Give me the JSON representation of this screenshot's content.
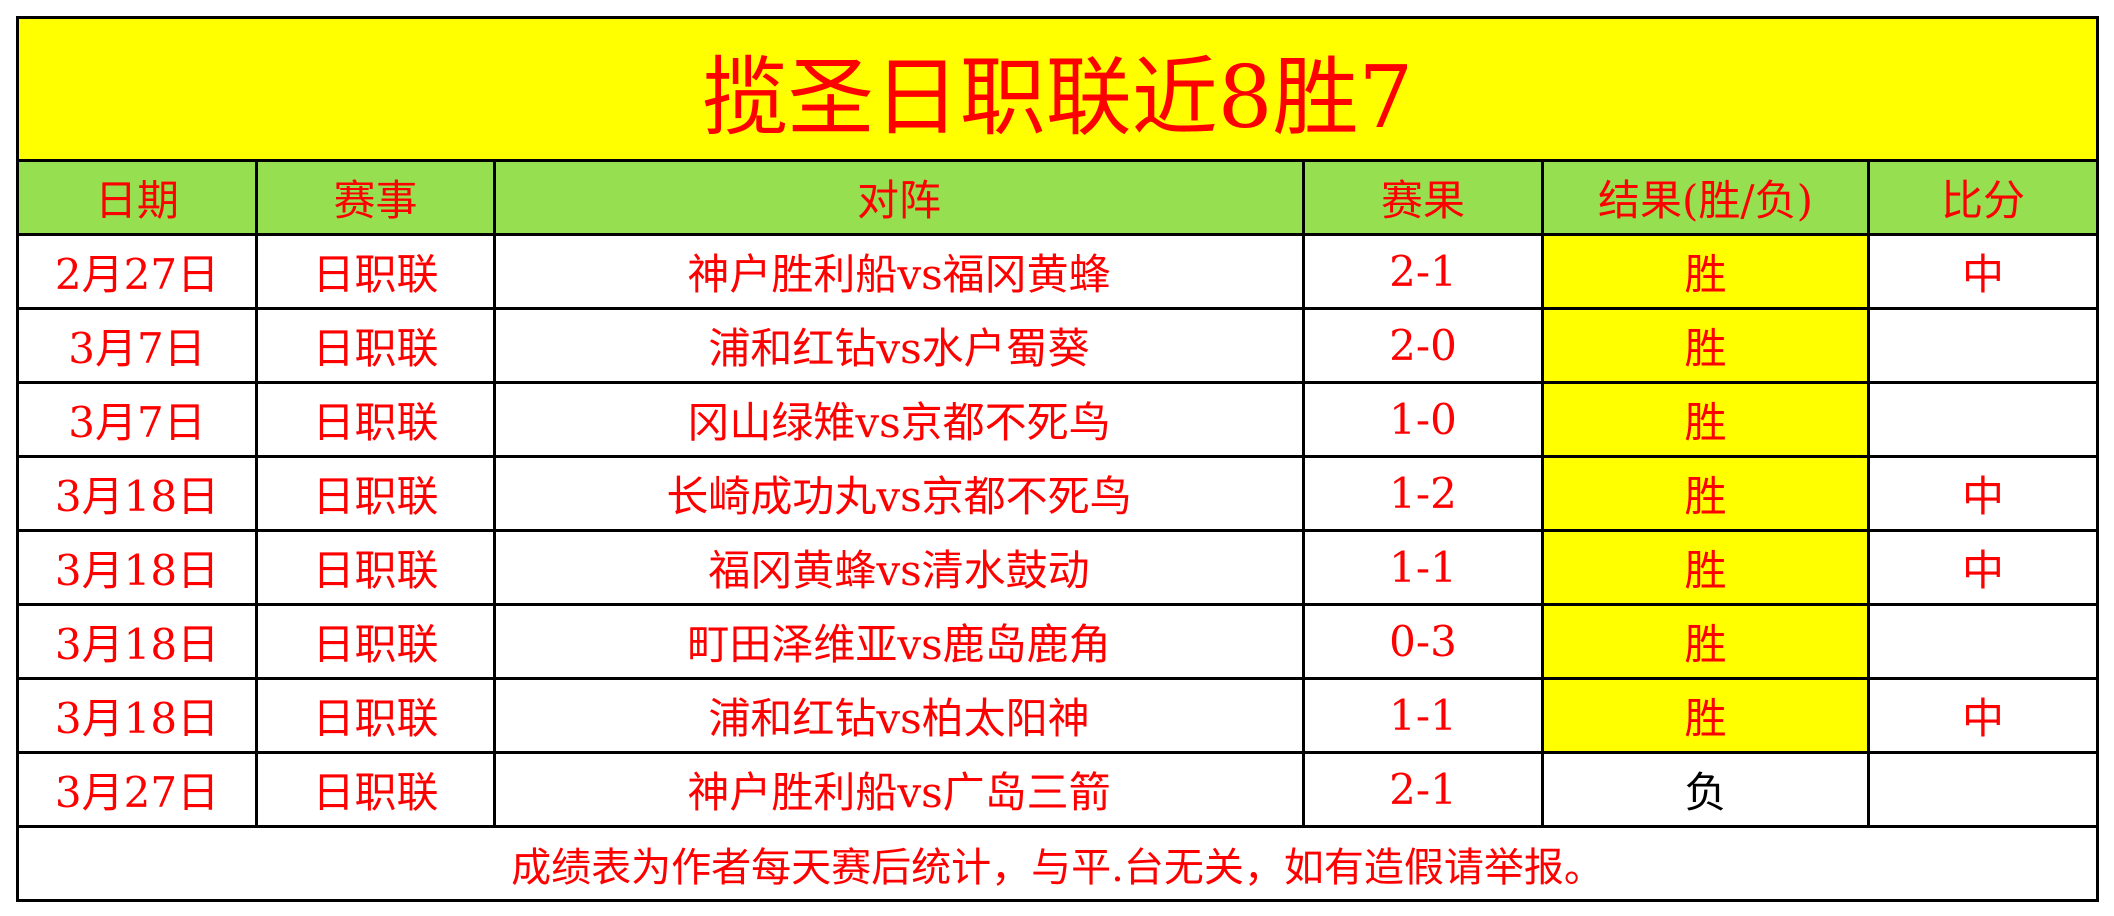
{
  "title": "揽圣日职联近8胜7",
  "headers": [
    "日期",
    "赛事",
    "对阵",
    "赛果",
    "结果(胜/负)",
    "比分"
  ],
  "rows": [
    {
      "date": "2月27日",
      "league": "日职联",
      "match": "神户胜利船vs福冈黄蜂",
      "score": "2-1",
      "result": "胜",
      "bifen": "中"
    },
    {
      "date": "3月7日",
      "league": "日职联",
      "match": "浦和红钻vs水户蜀葵",
      "score": "2-0",
      "result": "胜",
      "bifen": ""
    },
    {
      "date": "3月7日",
      "league": "日职联",
      "match": "冈山绿雉vs京都不死鸟",
      "score": "1-0",
      "result": "胜",
      "bifen": ""
    },
    {
      "date": "3月18日",
      "league": "日职联",
      "match": "长崎成功丸vs京都不死鸟",
      "score": "1-2",
      "result": "胜",
      "bifen": "中"
    },
    {
      "date": "3月18日",
      "league": "日职联",
      "match": "福冈黄蜂vs清水鼓动",
      "score": "1-1",
      "result": "胜",
      "bifen": "中"
    },
    {
      "date": "3月18日",
      "league": "日职联",
      "match": "町田泽维亚vs鹿岛鹿角",
      "score": "0-3",
      "result": "胜",
      "bifen": ""
    },
    {
      "date": "3月18日",
      "league": "日职联",
      "match": "浦和红钻vs柏太阳神",
      "score": "1-1",
      "result": "胜",
      "bifen": "中"
    },
    {
      "date": "3月27日",
      "league": "日职联",
      "match": "神户胜利船vs广岛三箭",
      "score": "2-1",
      "result": "负",
      "bifen": ""
    }
  ],
  "footer": "成绩表为作者每天赛后统计，与平.台无关，如有造假请举报。",
  "colors": {
    "title_bg": "#ffff00",
    "header_bg": "#95df51",
    "text": "#ff0000",
    "win_bg": "#ffff00",
    "lose_text": "#000000"
  }
}
